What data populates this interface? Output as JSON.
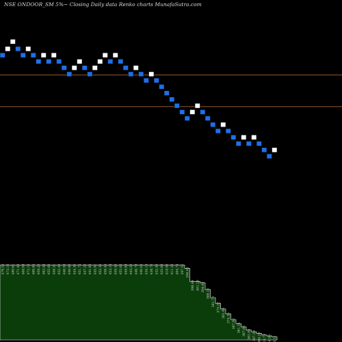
{
  "header": {
    "title": "NSE ONDOOR_SM 5%~  Closing Daily data  Renko  charts MunafaSutra.com"
  },
  "chart_data": {
    "type": "renko",
    "price_range": [
      120,
      480
    ],
    "reference_lines": [
      {
        "value": 412,
        "color": "#c87a3a"
      },
      {
        "value": 377,
        "color": "#c87a3a"
      }
    ],
    "colors": {
      "up_brick": "#ffffff",
      "down_brick": "#1f6fe6",
      "volume_fill": "#0b3d0b",
      "volume_stroke": "#ffffff",
      "ref_line": "#c87a3a"
    },
    "bricks": [
      {
        "v": 434,
        "d": "down"
      },
      {
        "v": 441,
        "d": "up"
      },
      {
        "v": 449,
        "d": "up"
      },
      {
        "v": 441,
        "d": "down"
      },
      {
        "v": 434,
        "d": "down"
      },
      {
        "v": 441,
        "d": "up"
      },
      {
        "v": 434,
        "d": "down"
      },
      {
        "v": 427,
        "d": "down"
      },
      {
        "v": 434,
        "d": "up"
      },
      {
        "v": 427,
        "d": "down"
      },
      {
        "v": 434,
        "d": "up"
      },
      {
        "v": 427,
        "d": "down"
      },
      {
        "v": 420,
        "d": "down"
      },
      {
        "v": 413,
        "d": "down"
      },
      {
        "v": 420,
        "d": "up"
      },
      {
        "v": 427,
        "d": "up"
      },
      {
        "v": 420,
        "d": "down"
      },
      {
        "v": 413,
        "d": "down"
      },
      {
        "v": 420,
        "d": "up"
      },
      {
        "v": 427,
        "d": "up"
      },
      {
        "v": 434,
        "d": "up"
      },
      {
        "v": 427,
        "d": "down"
      },
      {
        "v": 434,
        "d": "up"
      },
      {
        "v": 427,
        "d": "down"
      },
      {
        "v": 420,
        "d": "down"
      },
      {
        "v": 413,
        "d": "down"
      },
      {
        "v": 420,
        "d": "up"
      },
      {
        "v": 413,
        "d": "down"
      },
      {
        "v": 406,
        "d": "down"
      },
      {
        "v": 413,
        "d": "up"
      },
      {
        "v": 406,
        "d": "down"
      },
      {
        "v": 399,
        "d": "down"
      },
      {
        "v": 392,
        "d": "down"
      },
      {
        "v": 385,
        "d": "down"
      },
      {
        "v": 378,
        "d": "down"
      },
      {
        "v": 371,
        "d": "down"
      },
      {
        "v": 364,
        "d": "down"
      },
      {
        "v": 371,
        "d": "up"
      },
      {
        "v": 378,
        "d": "up"
      },
      {
        "v": 371,
        "d": "down"
      },
      {
        "v": 364,
        "d": "down"
      },
      {
        "v": 357,
        "d": "down"
      },
      {
        "v": 350,
        "d": "down"
      },
      {
        "v": 357,
        "d": "up"
      },
      {
        "v": 350,
        "d": "down"
      },
      {
        "v": 343,
        "d": "down"
      },
      {
        "v": 336,
        "d": "down"
      },
      {
        "v": 343,
        "d": "up"
      },
      {
        "v": 336,
        "d": "down"
      },
      {
        "v": 343,
        "d": "up"
      },
      {
        "v": 336,
        "d": "down"
      },
      {
        "v": 329,
        "d": "down"
      },
      {
        "v": 322,
        "d": "down"
      },
      {
        "v": 329,
        "d": "up"
      }
    ],
    "volume_labels": [
      "476.55",
      "473.10",
      "480.61",
      "471.40",
      "468.08",
      "472.12",
      "466.85",
      "459.20",
      "462.44",
      "455.60",
      "458.31",
      "452.40",
      "446.93",
      "440.66",
      "444.30",
      "451.75",
      "447.20",
      "441.62",
      "445.91",
      "452.30",
      "458.45",
      "453.19",
      "459.40",
      "455.02",
      "449.63",
      "443.20",
      "446.78",
      "440.05",
      "434.15",
      "438.70",
      "432.40",
      "425.66",
      "418.90",
      "411.20",
      "404.75",
      "397.51",
      "390.02",
      "396.44",
      "401.29",
      "394.60",
      "388.15",
      "381.70",
      "375.22",
      "381.00",
      "374.35",
      "367.80",
      "361.14",
      "367.66",
      "361.05",
      "367.39",
      "360.20",
      "353.72",
      "346.90",
      "353.11"
    ],
    "volume_levels": [
      0.92,
      0.92,
      0.92,
      0.92,
      0.92,
      0.92,
      0.92,
      0.92,
      0.92,
      0.92,
      0.92,
      0.92,
      0.92,
      0.92,
      0.92,
      0.92,
      0.92,
      0.92,
      0.92,
      0.92,
      0.92,
      0.92,
      0.92,
      0.92,
      0.92,
      0.92,
      0.92,
      0.92,
      0.92,
      0.92,
      0.92,
      0.92,
      0.92,
      0.92,
      0.92,
      0.92,
      0.88,
      0.72,
      0.72,
      0.7,
      0.62,
      0.52,
      0.45,
      0.38,
      0.32,
      0.25,
      0.2,
      0.16,
      0.12,
      0.1,
      0.08,
      0.06,
      0.05,
      0.04
    ]
  }
}
